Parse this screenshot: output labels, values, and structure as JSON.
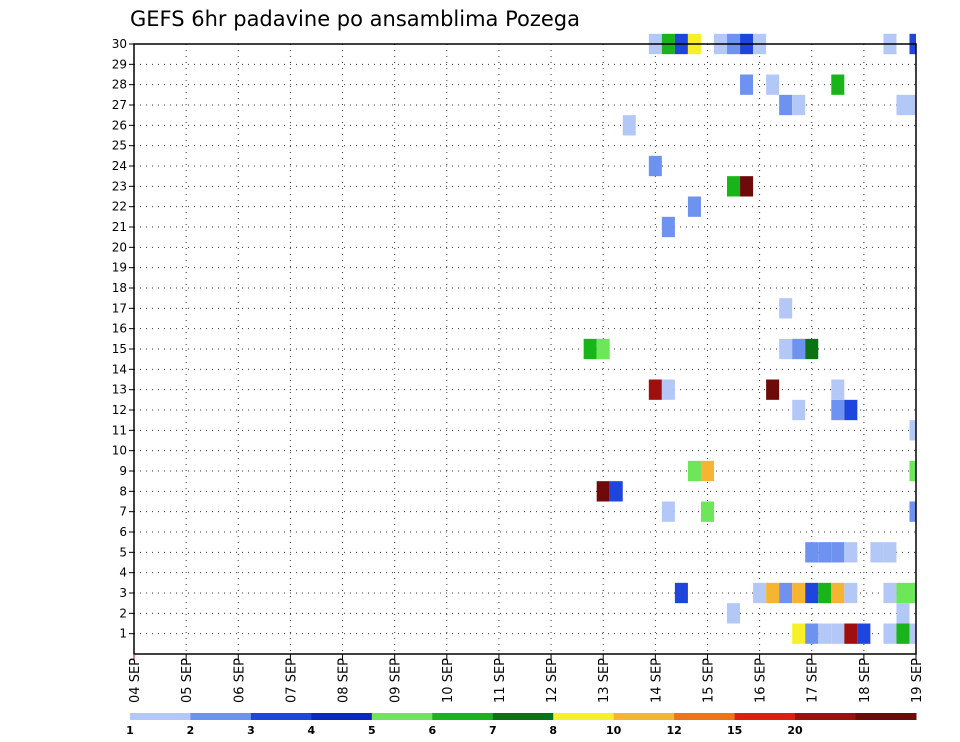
{
  "chart_data": {
    "type": "heatmap",
    "title": "GEFS 6hr padavine po ansamblima Pozega",
    "x_tick_labels": [
      "04 SEP",
      "05 SEP",
      "06 SEP",
      "07 SEP",
      "08 SEP",
      "09 SEP",
      "10 SEP",
      "11 SEP",
      "12 SEP",
      "13 SEP",
      "14 SEP",
      "15 SEP",
      "16 SEP",
      "17 SEP",
      "18 SEP",
      "19 SEP"
    ],
    "x_range_days": [
      0,
      15
    ],
    "y_tick_labels": [
      "1",
      "2",
      "3",
      "4",
      "5",
      "6",
      "7",
      "8",
      "9",
      "10",
      "11",
      "12",
      "13",
      "14",
      "15",
      "16",
      "17",
      "18",
      "19",
      "20",
      "21",
      "22",
      "23",
      "24",
      "25",
      "26",
      "27",
      "28",
      "29",
      "30"
    ],
    "y_range": [
      0,
      30
    ],
    "grid": true,
    "colorbar": {
      "tick_labels": [
        "1",
        "2",
        "3",
        "4",
        "5",
        "6",
        "7",
        "8",
        "10",
        "12",
        "15",
        "20"
      ],
      "colors": [
        "#b4c8f8",
        "#6e92f0",
        "#1e46dc",
        "#0d28c0",
        "#6ee65a",
        "#19b419",
        "#0a7314",
        "#f5f028",
        "#f5b432",
        "#f07314",
        "#dc1e14",
        "#a00f0f",
        "#6e0a0a"
      ]
    },
    "cells": [
      {
        "member": 1,
        "t": "16 SEP 18Z",
        "level": 8
      },
      {
        "member": 1,
        "t": "17 SEP 00Z",
        "level": 2
      },
      {
        "member": 1,
        "t": "17 SEP 06Z",
        "level": 1
      },
      {
        "member": 1,
        "t": "17 SEP 12Z",
        "level": 1
      },
      {
        "member": 1,
        "t": "17 SEP 18Z",
        "level": 12
      },
      {
        "member": 1,
        "t": "18 SEP 00Z",
        "level": 3
      },
      {
        "member": 1,
        "t": "18 SEP 12Z",
        "level": 1
      },
      {
        "member": 1,
        "t": "18 SEP 18Z",
        "level": 6
      },
      {
        "member": 1,
        "t": "19 SEP 00Z",
        "level": 1
      },
      {
        "member": 2,
        "t": "15 SEP 12Z",
        "level": 1
      },
      {
        "member": 2,
        "t": "18 SEP 18Z",
        "level": 1
      },
      {
        "member": 3,
        "t": "14 SEP 12Z",
        "level": 3
      },
      {
        "member": 3,
        "t": "16 SEP 00Z",
        "level": 1
      },
      {
        "member": 3,
        "t": "16 SEP 06Z",
        "level": 9
      },
      {
        "member": 3,
        "t": "16 SEP 12Z",
        "level": 2
      },
      {
        "member": 3,
        "t": "16 SEP 18Z",
        "level": 9
      },
      {
        "member": 3,
        "t": "17 SEP 00Z",
        "level": 3
      },
      {
        "member": 3,
        "t": "17 SEP 06Z",
        "level": 6
      },
      {
        "member": 3,
        "t": "17 SEP 12Z",
        "level": 9
      },
      {
        "member": 3,
        "t": "17 SEP 18Z",
        "level": 1
      },
      {
        "member": 3,
        "t": "18 SEP 12Z",
        "level": 1
      },
      {
        "member": 3,
        "t": "18 SEP 18Z",
        "level": 5
      },
      {
        "member": 3,
        "t": "19 SEP 00Z",
        "level": 5
      },
      {
        "member": 5,
        "t": "17 SEP 00Z",
        "level": 2
      },
      {
        "member": 5,
        "t": "17 SEP 06Z",
        "level": 2
      },
      {
        "member": 5,
        "t": "17 SEP 12Z",
        "level": 2
      },
      {
        "member": 5,
        "t": "17 SEP 18Z",
        "level": 1
      },
      {
        "member": 5,
        "t": "18 SEP 06Z",
        "level": 1
      },
      {
        "member": 5,
        "t": "18 SEP 12Z",
        "level": 1
      },
      {
        "member": 7,
        "t": "14 SEP 06Z",
        "level": 1
      },
      {
        "member": 7,
        "t": "15 SEP 00Z",
        "level": 5
      },
      {
        "member": 7,
        "t": "19 SEP 00Z",
        "level": 2
      },
      {
        "member": 8,
        "t": "13 SEP 00Z",
        "level": 13
      },
      {
        "member": 8,
        "t": "13 SEP 06Z",
        "level": 3
      },
      {
        "member": 9,
        "t": "14 SEP 18Z",
        "level": 5
      },
      {
        "member": 9,
        "t": "15 SEP 00Z",
        "level": 9
      },
      {
        "member": 9,
        "t": "19 SEP 00Z",
        "level": 5
      },
      {
        "member": 11,
        "t": "19 SEP 00Z",
        "level": 1
      },
      {
        "member": 12,
        "t": "16 SEP 18Z",
        "level": 1
      },
      {
        "member": 12,
        "t": "17 SEP 12Z",
        "level": 2
      },
      {
        "member": 12,
        "t": "17 SEP 18Z",
        "level": 3
      },
      {
        "member": 13,
        "t": "14 SEP 00Z",
        "level": 12
      },
      {
        "member": 13,
        "t": "14 SEP 06Z",
        "level": 1
      },
      {
        "member": 13,
        "t": "16 SEP 06Z",
        "level": 13
      },
      {
        "member": 13,
        "t": "17 SEP 12Z",
        "level": 1
      },
      {
        "member": 15,
        "t": "12 SEP 18Z",
        "level": 6
      },
      {
        "member": 15,
        "t": "13 SEP 00Z",
        "level": 5
      },
      {
        "member": 15,
        "t": "16 SEP 12Z",
        "level": 1
      },
      {
        "member": 15,
        "t": "16 SEP 18Z",
        "level": 2
      },
      {
        "member": 15,
        "t": "17 SEP 00Z",
        "level": 7
      },
      {
        "member": 17,
        "t": "16 SEP 12Z",
        "level": 1
      },
      {
        "member": 21,
        "t": "14 SEP 06Z",
        "level": 2
      },
      {
        "member": 22,
        "t": "14 SEP 18Z",
        "level": 2
      },
      {
        "member": 23,
        "t": "15 SEP 12Z",
        "level": 6
      },
      {
        "member": 23,
        "t": "15 SEP 18Z",
        "level": 13
      },
      {
        "member": 24,
        "t": "14 SEP 00Z",
        "level": 2
      },
      {
        "member": 26,
        "t": "13 SEP 12Z",
        "level": 1
      },
      {
        "member": 27,
        "t": "16 SEP 12Z",
        "level": 2
      },
      {
        "member": 27,
        "t": "16 SEP 18Z",
        "level": 1
      },
      {
        "member": 27,
        "t": "18 SEP 18Z",
        "level": 1
      },
      {
        "member": 27,
        "t": "19 SEP 00Z",
        "level": 1
      },
      {
        "member": 28,
        "t": "15 SEP 18Z",
        "level": 2
      },
      {
        "member": 28,
        "t": "16 SEP 06Z",
        "level": 1
      },
      {
        "member": 28,
        "t": "17 SEP 12Z",
        "level": 6
      },
      {
        "member": 30,
        "t": "14 SEP 00Z",
        "level": 1
      },
      {
        "member": 30,
        "t": "14 SEP 06Z",
        "level": 6
      },
      {
        "member": 30,
        "t": "14 SEP 12Z",
        "level": 3
      },
      {
        "member": 30,
        "t": "14 SEP 18Z",
        "level": 8
      },
      {
        "member": 30,
        "t": "15 SEP 06Z",
        "level": 1
      },
      {
        "member": 30,
        "t": "15 SEP 12Z",
        "level": 2
      },
      {
        "member": 30,
        "t": "15 SEP 18Z",
        "level": 3
      },
      {
        "member": 30,
        "t": "16 SEP 00Z",
        "level": 1
      },
      {
        "member": 30,
        "t": "18 SEP 12Z",
        "level": 1
      },
      {
        "member": 30,
        "t": "19 SEP 00Z",
        "level": 3
      }
    ]
  }
}
